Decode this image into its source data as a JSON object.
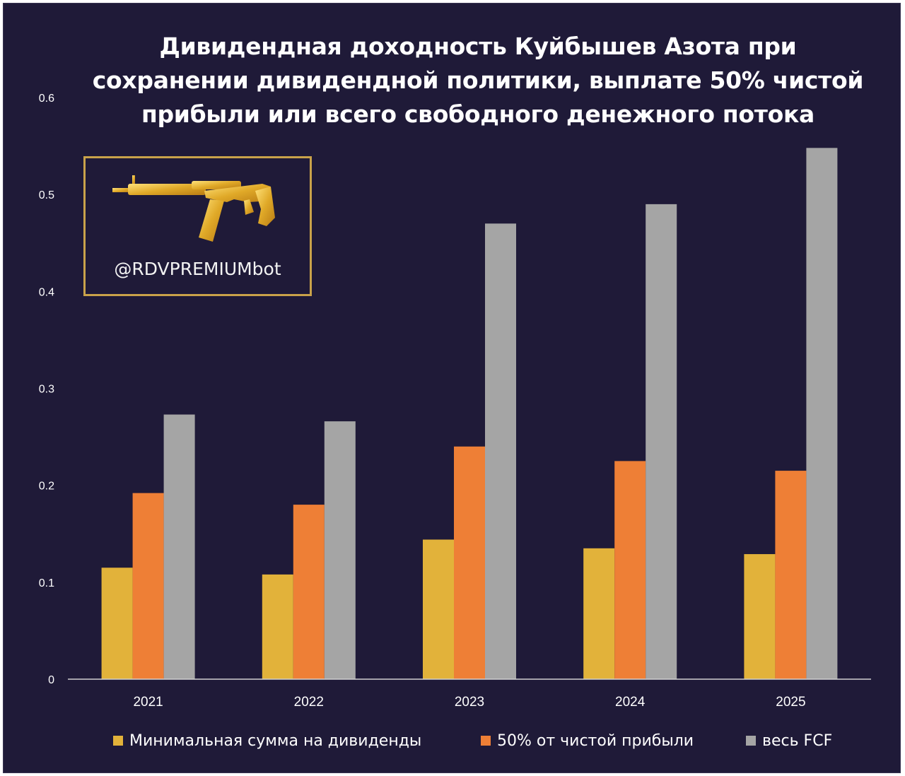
{
  "chart_data": {
    "type": "bar",
    "title": "Дивидендная доходность Куйбышев Азота при сохранении дивидендной политики, выплате 50% чистой прибыли или всего свободного денежного потока",
    "title_lines": [
      "Дивидендная доходность Куйбышев Азота при",
      "сохранении дивидендной политики, выплате 50% чистой",
      "прибыли или всего свободного денежного потока"
    ],
    "categories": [
      "2021",
      "2022",
      "2023",
      "2024",
      "2025"
    ],
    "series": [
      {
        "name": "Минимальная сумма на дивиденды",
        "color": "#e2b23a",
        "values": [
          0.115,
          0.108,
          0.144,
          0.135,
          0.129
        ]
      },
      {
        "name": "50% от чистой прибыли",
        "color": "#ee7f36",
        "values": [
          0.192,
          0.18,
          0.24,
          0.225,
          0.215
        ]
      },
      {
        "name": "весь FCF",
        "color": "#a5a5a5",
        "values": [
          0.273,
          0.266,
          0.47,
          0.49,
          0.548
        ]
      }
    ],
    "yticks": [
      "0",
      "0.1",
      "0.2",
      "0.3",
      "0.4",
      "0.5",
      "0.6"
    ],
    "ylim": [
      0,
      0.6
    ],
    "xlabel": "",
    "ylabel": "",
    "grid": false,
    "legend_position": "bottom"
  },
  "watermark": {
    "text": "@RDVPREMIUMbot",
    "border_color": "#c9a24a",
    "image": "golden-rifle-icon"
  },
  "colors": {
    "background": "#1f1a38",
    "text": "#ffffff"
  }
}
